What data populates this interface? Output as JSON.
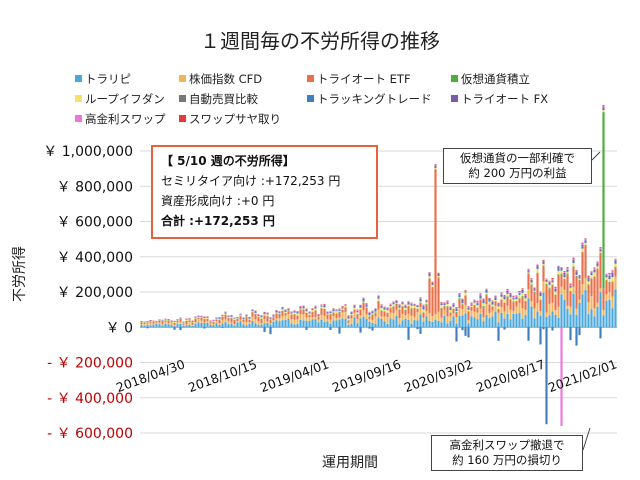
{
  "chart_data": {
    "type": "bar",
    "stacked": true,
    "title": "１週間毎の不労所得の推移",
    "xlabel": "運用期間",
    "ylabel": "不労所得",
    "ylim": [
      -600000,
      1000000
    ],
    "y_ticks": [
      {
        "value": 1000000,
        "label": "￥ 1,000,000"
      },
      {
        "value": 800000,
        "label": "￥ 800,000"
      },
      {
        "value": 600000,
        "label": "￥ 600,000"
      },
      {
        "value": 400000,
        "label": "￥ 400,000"
      },
      {
        "value": 200000,
        "label": "￥ 200,000"
      },
      {
        "value": 0,
        "label": "￥ 0"
      },
      {
        "value": -200000,
        "label": "- ￥ 200,000"
      },
      {
        "value": -400000,
        "label": "- ￥ 400,000"
      },
      {
        "value": -600000,
        "label": "- ￥ 600,000"
      }
    ],
    "x_ticks": [
      "2018/04/30",
      "2018/10/15",
      "2019/04/01",
      "2019/09/16",
      "2020/03/02",
      "2020/08/17",
      "2021/02/01"
    ],
    "x_tick_positions": [
      0,
      24,
      48,
      72,
      96,
      120,
      144
    ],
    "week_count": 159,
    "legend_placement": "top",
    "series": [
      {
        "name": "トラリピ",
        "color": "#4aa8dc"
      },
      {
        "name": "株価指数 CFD",
        "color": "#f2b55c"
      },
      {
        "name": "トライオート ETF",
        "color": "#e8704a"
      },
      {
        "name": "仮想通貨積立",
        "color": "#4caf3a"
      },
      {
        "name": "ループイフダン",
        "color": "#f5e06a"
      },
      {
        "name": "自動売買比較",
        "color": "#777777"
      },
      {
        "name": "トラッキングトレード",
        "color": "#3f7fbf"
      },
      {
        "name": "トライオート FX",
        "color": "#7b5aa6"
      },
      {
        "name": "高金利スワップ",
        "color": "#ee77dd"
      },
      {
        "name": "スワップサヤ取り",
        "color": "#e23b3b"
      }
    ],
    "notable_points": [
      {
        "week": 154,
        "series": "仮想通貨積立",
        "value": 1000000
      },
      {
        "week": 135,
        "series": "トラッキングトレード",
        "value": -550000
      },
      {
        "week": 140,
        "series": "高金利スワップ",
        "value": -560000
      },
      {
        "week": 98,
        "series": "トライオート ETF",
        "value": 820000
      }
    ]
  },
  "infobox": {
    "title": "【 5/10 週の不労所得】",
    "line1": "セミリタイア向け :+172,253 円",
    "line2": "資産形成向け :+0 円",
    "line3": "合計 :+172,253 円"
  },
  "callouts": {
    "crypto": "仮想通貨の一部利確で\n約 200 万円の利益",
    "swap": "高金利スワップ撤退で\n約 160 万円の損切り"
  }
}
